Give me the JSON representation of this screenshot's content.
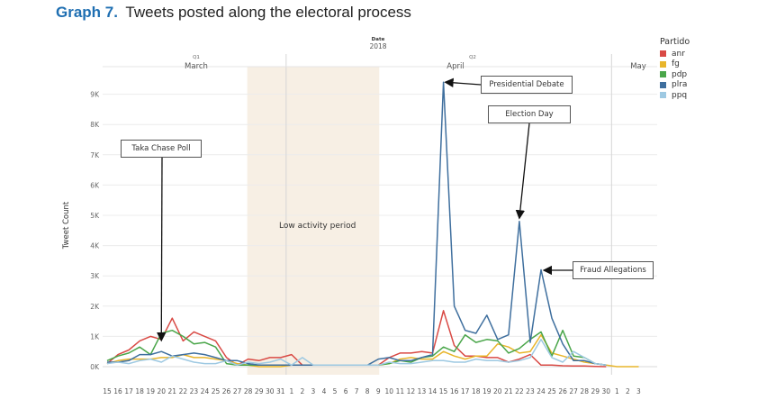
{
  "title": {
    "number": "Graph 7.",
    "text": "Tweets posted along the electoral process"
  },
  "chart_data": {
    "type": "line",
    "header": {
      "label": "Date",
      "year": "2018",
      "q1": "Q1",
      "q2": "Q2"
    },
    "months": [
      "March",
      "April",
      "May"
    ],
    "ylabel": "Tweet Count",
    "yticks": [
      "0K",
      "1K",
      "2K",
      "3K",
      "4K",
      "5K",
      "6K",
      "7K",
      "8K",
      "9K"
    ],
    "ylim": [
      0,
      10000
    ],
    "x": [
      "15",
      "16",
      "17",
      "18",
      "19",
      "20",
      "21",
      "22",
      "23",
      "24",
      "25",
      "26",
      "27",
      "28",
      "29",
      "30",
      "31",
      "1",
      "2",
      "3",
      "4",
      "5",
      "6",
      "7",
      "8",
      "9",
      "10",
      "11",
      "12",
      "13",
      "14",
      "15",
      "16",
      "17",
      "18",
      "19",
      "20",
      "21",
      "22",
      "23",
      "24",
      "25",
      "26",
      "27",
      "28",
      "29",
      "30",
      "1",
      "2",
      "3"
    ],
    "grid": true,
    "shaded_region": {
      "from": "28",
      "to": "9",
      "label": "Low activity period"
    },
    "legend": {
      "title": "Partido",
      "items": [
        {
          "name": "anr",
          "color": "#d94a45"
        },
        {
          "name": "fg",
          "color": "#e8b52b"
        },
        {
          "name": "pdp",
          "color": "#4aa64a"
        },
        {
          "name": "plra",
          "color": "#3f6f9e"
        },
        {
          "name": "ppq",
          "color": "#9ec9e2"
        }
      ]
    },
    "series": [
      {
        "name": "anr",
        "color": "#d94a45",
        "values": [
          100,
          400,
          550,
          850,
          1000,
          900,
          1600,
          850,
          1150,
          1000,
          850,
          300,
          50,
          250,
          200,
          300,
          300,
          400,
          50,
          50,
          50,
          50,
          50,
          50,
          50,
          50,
          300,
          450,
          450,
          500,
          450,
          1850,
          700,
          350,
          350,
          300,
          300,
          150,
          250,
          400,
          50,
          50,
          30,
          20,
          20,
          10,
          0,
          null,
          null,
          null
        ]
      },
      {
        "name": "fg",
        "color": "#e8b52b",
        "values": [
          100,
          200,
          250,
          250,
          250,
          300,
          300,
          400,
          300,
          300,
          250,
          200,
          100,
          50,
          0,
          0,
          0,
          50,
          50,
          50,
          50,
          50,
          50,
          50,
          50,
          50,
          100,
          250,
          300,
          250,
          250,
          500,
          350,
          250,
          350,
          350,
          750,
          650,
          450,
          500,
          1050,
          450,
          350,
          250,
          150,
          100,
          50,
          0,
          0,
          0
        ]
      },
      {
        "name": "pdp",
        "color": "#4aa64a",
        "values": [
          200,
          350,
          450,
          650,
          400,
          1100,
          1200,
          1000,
          750,
          800,
          650,
          100,
          50,
          50,
          50,
          50,
          50,
          50,
          50,
          50,
          50,
          50,
          50,
          50,
          50,
          50,
          100,
          200,
          150,
          300,
          350,
          650,
          500,
          1050,
          800,
          900,
          850,
          450,
          600,
          900,
          1150,
          350,
          1200,
          350,
          300,
          100,
          50,
          null,
          null,
          null
        ]
      },
      {
        "name": "plra",
        "color": "#3f6f9e",
        "values": [
          150,
          150,
          200,
          400,
          400,
          500,
          350,
          400,
          450,
          400,
          300,
          200,
          200,
          100,
          50,
          50,
          50,
          50,
          50,
          50,
          50,
          50,
          50,
          50,
          50,
          250,
          300,
          200,
          200,
          300,
          400,
          9400,
          2000,
          1200,
          1100,
          1700,
          900,
          1050,
          4800,
          800,
          3200,
          1600,
          750,
          200,
          200,
          100,
          50,
          null,
          null,
          null
        ]
      },
      {
        "name": "ppq",
        "color": "#9ec9e2",
        "values": [
          100,
          150,
          100,
          200,
          250,
          150,
          350,
          250,
          150,
          100,
          100,
          200,
          50,
          150,
          100,
          150,
          250,
          50,
          300,
          50,
          50,
          50,
          50,
          50,
          50,
          50,
          150,
          100,
          100,
          150,
          200,
          200,
          150,
          150,
          250,
          200,
          200,
          150,
          200,
          300,
          900,
          300,
          150,
          500,
          300,
          100,
          50,
          null,
          null,
          null
        ]
      }
    ],
    "annotations": [
      {
        "text": "Taka Chase Poll",
        "x": "20",
        "y": 800
      },
      {
        "text": "Presidential Debate",
        "x": "15",
        "y": 9400
      },
      {
        "text": "Election Day",
        "x": "22",
        "y": 4900
      },
      {
        "text": "Fraud Allegations",
        "x": "24",
        "y": 3300
      }
    ]
  }
}
